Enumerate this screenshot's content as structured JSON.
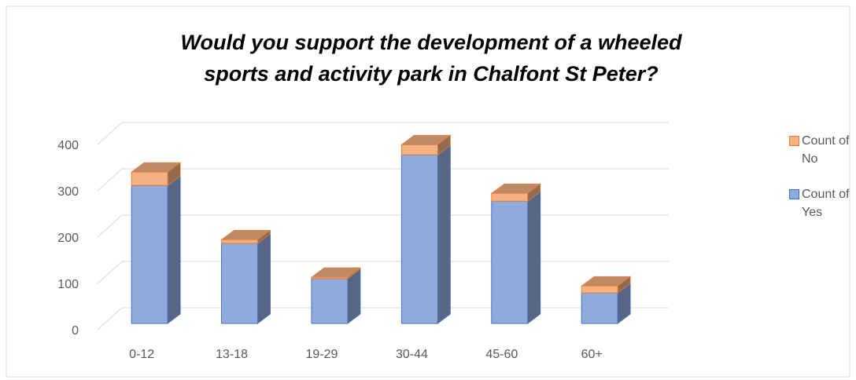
{
  "chart_data": {
    "type": "bar",
    "stacked": true,
    "three_d": true,
    "title_lines": [
      "Would you support the development of a wheeled",
      "sports and activity park in Chalfont St Peter?"
    ],
    "categories": [
      "0-12",
      "13-18",
      "19-29",
      "30-44",
      "45-60",
      "60+"
    ],
    "series": [
      {
        "name": "Count of Yes",
        "color": "#8faadc",
        "values": [
          298,
          173,
          97,
          364,
          264,
          66
        ]
      },
      {
        "name": "Count of No",
        "color": "#f4b183",
        "values": [
          29,
          8,
          3,
          22,
          17,
          15
        ]
      }
    ],
    "ylim": [
      0,
      400
    ],
    "yticks": [
      0,
      100,
      200,
      300,
      400
    ],
    "grid": true,
    "legend": "right"
  }
}
